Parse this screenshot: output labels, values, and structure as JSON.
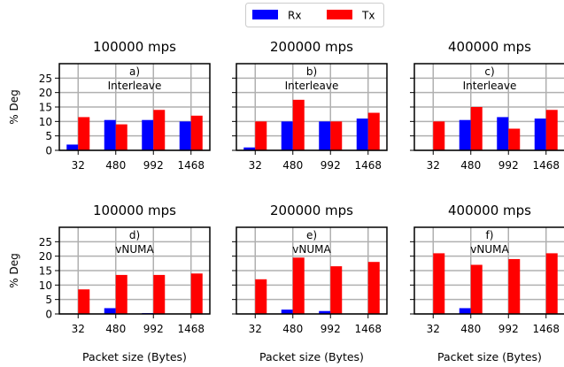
{
  "legend": {
    "placement": "top-center",
    "entries": [
      {
        "label": "Rx",
        "color": "#0000ff"
      },
      {
        "label": "Tx",
        "color": "#ff0000"
      }
    ]
  },
  "colors": {
    "rx": "#0000ff",
    "tx": "#ff0000",
    "grid": "#b0b0b0",
    "axis": "#000000"
  },
  "chart_data": [
    {
      "type": "bar",
      "title": "100000 mps",
      "annotation": "a)",
      "subtitle": "Interleave",
      "ylabel": "% Deg",
      "xlabel": "",
      "categories": [
        "32",
        "480",
        "992",
        "1468"
      ],
      "ylim": [
        0,
        30
      ],
      "yticks": [
        0,
        5,
        10,
        15,
        20,
        25
      ],
      "grid": true,
      "series": [
        {
          "name": "Rx",
          "values": [
            2,
            10.5,
            10.5,
            10
          ]
        },
        {
          "name": "Tx",
          "values": [
            11.5,
            9,
            14,
            12
          ]
        }
      ]
    },
    {
      "type": "bar",
      "title": "200000 mps",
      "annotation": "b)",
      "subtitle": "Interleave",
      "ylabel": "",
      "xlabel": "",
      "categories": [
        "32",
        "480",
        "992",
        "1468"
      ],
      "ylim": [
        0,
        30
      ],
      "yticks": [
        0,
        5,
        10,
        15,
        20,
        25
      ],
      "grid": true,
      "series": [
        {
          "name": "Rx",
          "values": [
            1,
            10,
            10,
            11
          ]
        },
        {
          "name": "Tx",
          "values": [
            10,
            17.5,
            10,
            13
          ]
        }
      ]
    },
    {
      "type": "bar",
      "title": "400000 mps",
      "annotation": "c)",
      "subtitle": "Interleave",
      "ylabel": "",
      "xlabel": "",
      "categories": [
        "32",
        "480",
        "992",
        "1468"
      ],
      "ylim": [
        0,
        30
      ],
      "yticks": [
        0,
        5,
        10,
        15,
        20,
        25
      ],
      "grid": true,
      "series": [
        {
          "name": "Rx",
          "values": [
            0,
            10.5,
            11.5,
            11
          ]
        },
        {
          "name": "Tx",
          "values": [
            10,
            15,
            7.5,
            14
          ]
        }
      ]
    },
    {
      "type": "bar",
      "title": "100000  mps",
      "annotation": "d)",
      "subtitle": "vNUMA",
      "ylabel": "% Deg",
      "xlabel": "Packet size (Bytes)",
      "categories": [
        "32",
        "480",
        "992",
        "1468"
      ],
      "ylim": [
        0,
        30
      ],
      "yticks": [
        0,
        5,
        10,
        15,
        20,
        25
      ],
      "grid": true,
      "series": [
        {
          "name": "Rx",
          "values": [
            0,
            2,
            0.3,
            0
          ]
        },
        {
          "name": "Tx",
          "values": [
            8.5,
            13.5,
            13.5,
            14
          ]
        }
      ]
    },
    {
      "type": "bar",
      "title": "200000 mps",
      "annotation": "e)",
      "subtitle": "vNUMA",
      "ylabel": "",
      "xlabel": "Packet size (Bytes)",
      "categories": [
        "32",
        "480",
        "992",
        "1468"
      ],
      "ylim": [
        0,
        30
      ],
      "yticks": [
        0,
        5,
        10,
        15,
        20,
        25
      ],
      "grid": true,
      "series": [
        {
          "name": "Rx",
          "values": [
            0,
            1.5,
            1,
            0
          ]
        },
        {
          "name": "Tx",
          "values": [
            12,
            19.5,
            16.5,
            18
          ]
        }
      ]
    },
    {
      "type": "bar",
      "title": "400000 mps",
      "annotation": "f)",
      "subtitle": "vNUMA",
      "ylabel": "",
      "xlabel": "Packet size (Bytes)",
      "categories": [
        "32",
        "480",
        "992",
        "1468"
      ],
      "ylim": [
        0,
        30
      ],
      "yticks": [
        0,
        5,
        10,
        15,
        20,
        25
      ],
      "grid": true,
      "series": [
        {
          "name": "Rx",
          "values": [
            0,
            2,
            0,
            0
          ]
        },
        {
          "name": "Tx",
          "values": [
            21,
            17,
            19,
            21
          ]
        }
      ]
    }
  ]
}
